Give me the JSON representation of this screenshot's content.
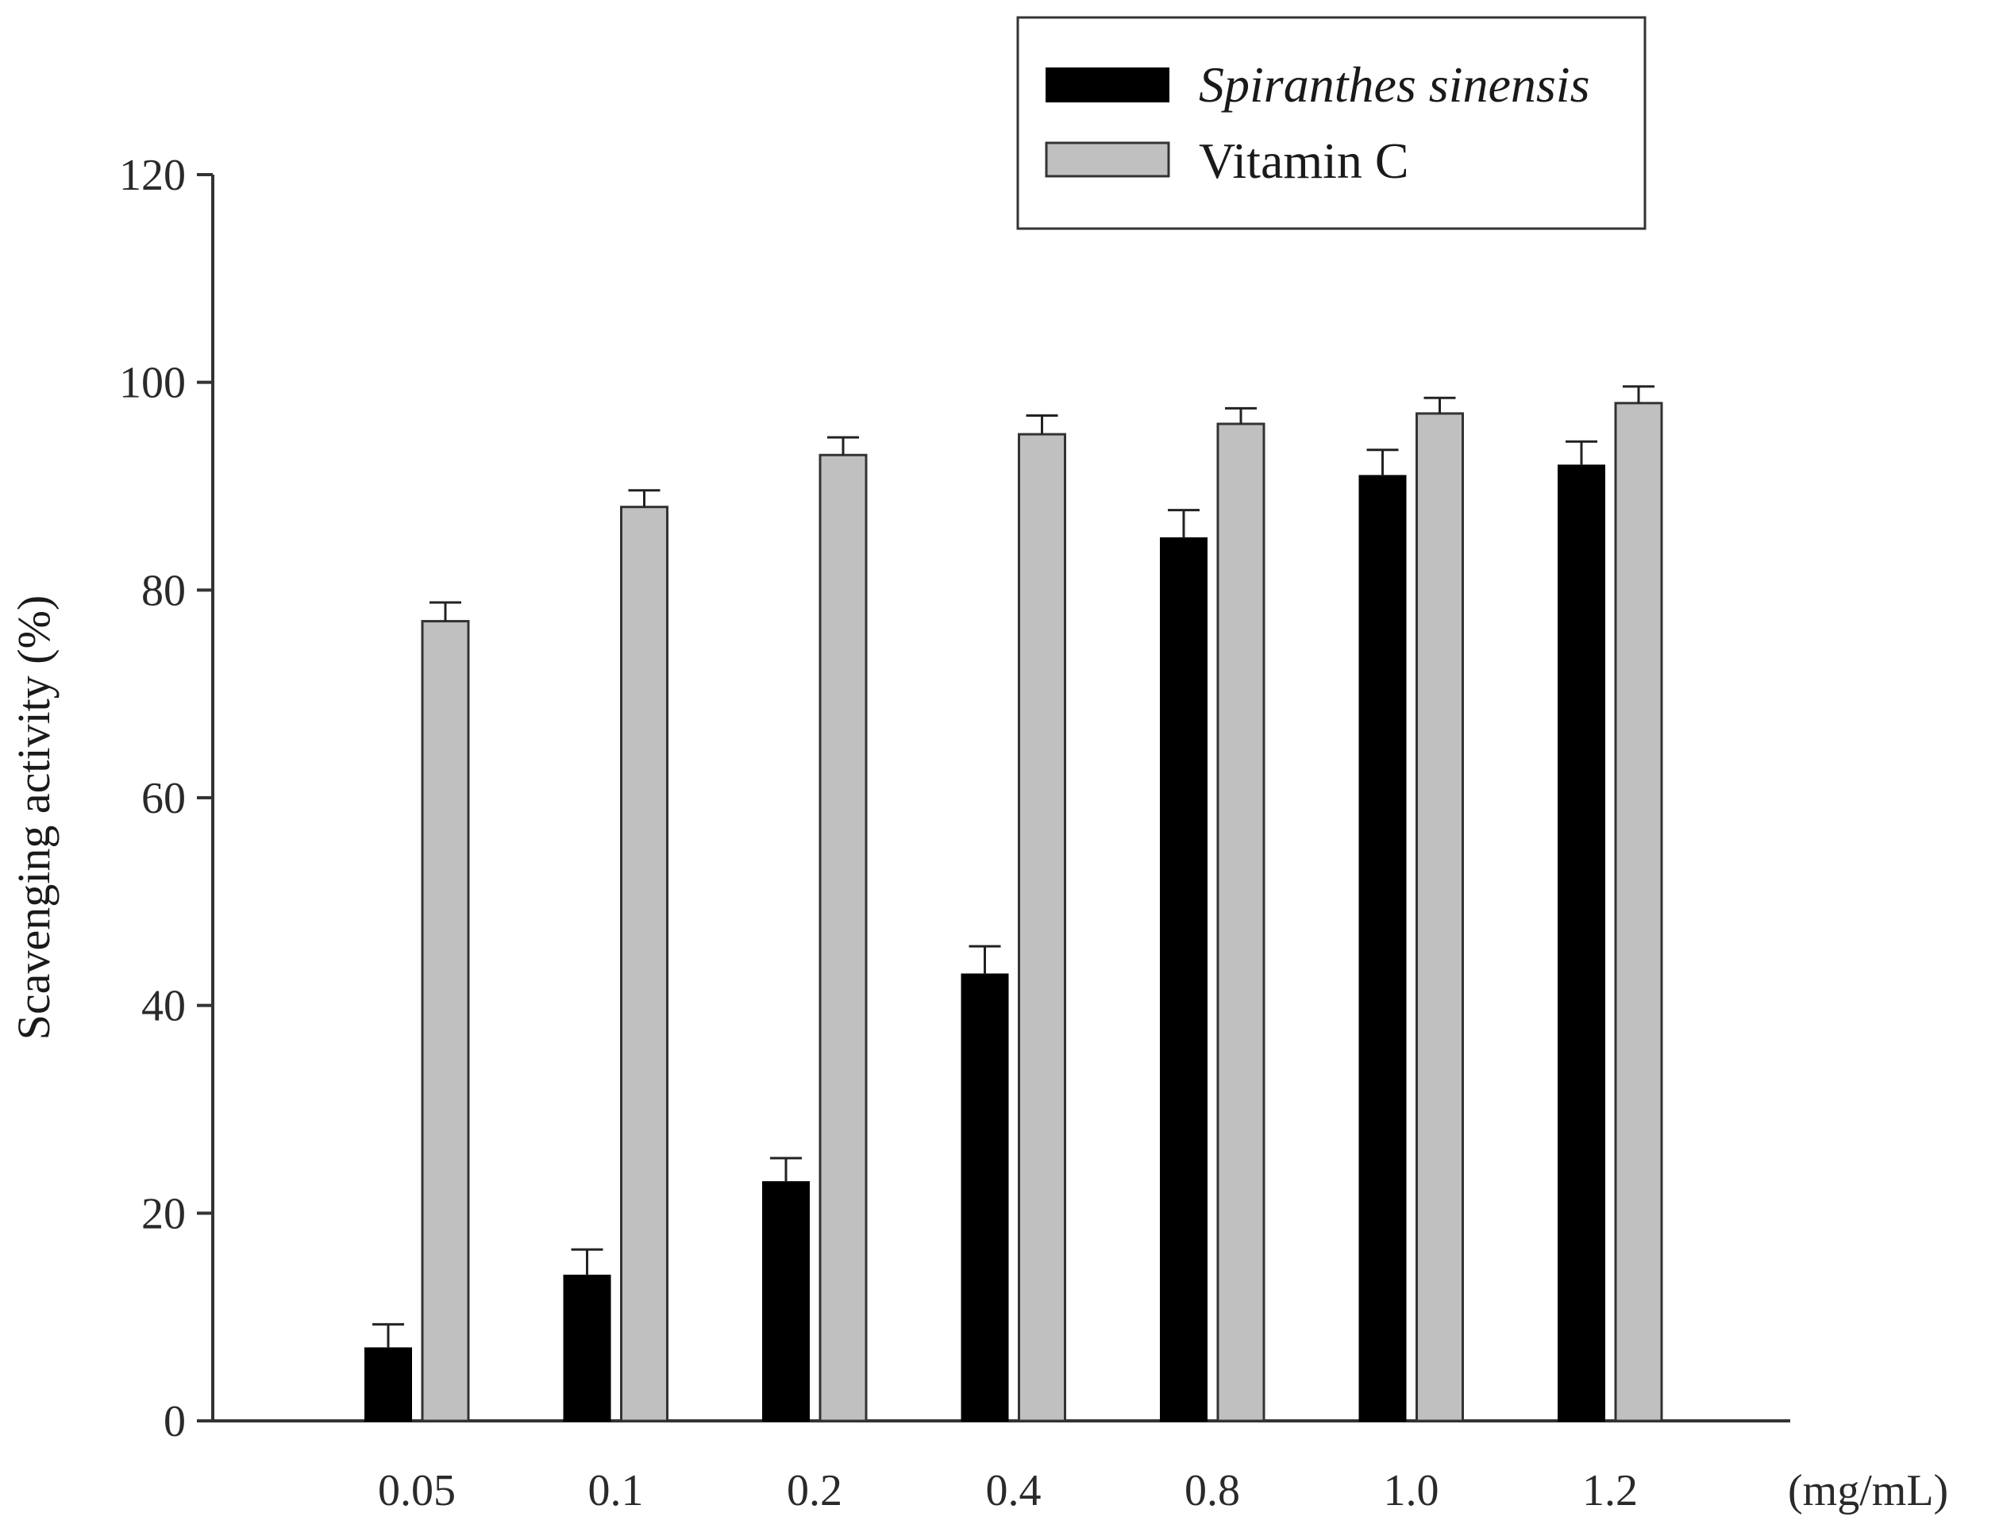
{
  "chart_data": {
    "type": "bar",
    "title": "",
    "xlabel": "",
    "x_unit_label": "(mg/mL)",
    "ylabel": "Scavenging activity (%)",
    "ylim": [
      0,
      120
    ],
    "yticks": [
      "0",
      "20",
      "40",
      "60",
      "80",
      "100",
      "120"
    ],
    "categories": [
      "0.05",
      "0.1",
      "0.2",
      "0.4",
      "0.8",
      "1.0",
      "1.2"
    ],
    "series": [
      {
        "name": "Spiranthes sinensis",
        "color": "#000000",
        "values": [
          7,
          14,
          23,
          43,
          85,
          91,
          92
        ],
        "errors": [
          2.3,
          2.5,
          2.3,
          2.7,
          2.7,
          2.5,
          2.3
        ]
      },
      {
        "name": "Vitamin C",
        "color": "#c0c0c0",
        "values": [
          77,
          88,
          93,
          95,
          96,
          97,
          98
        ],
        "errors": [
          1.8,
          1.6,
          1.7,
          1.8,
          1.5,
          1.5,
          1.6
        ]
      }
    ],
    "legend_position": "top-right",
    "grid": false
  }
}
